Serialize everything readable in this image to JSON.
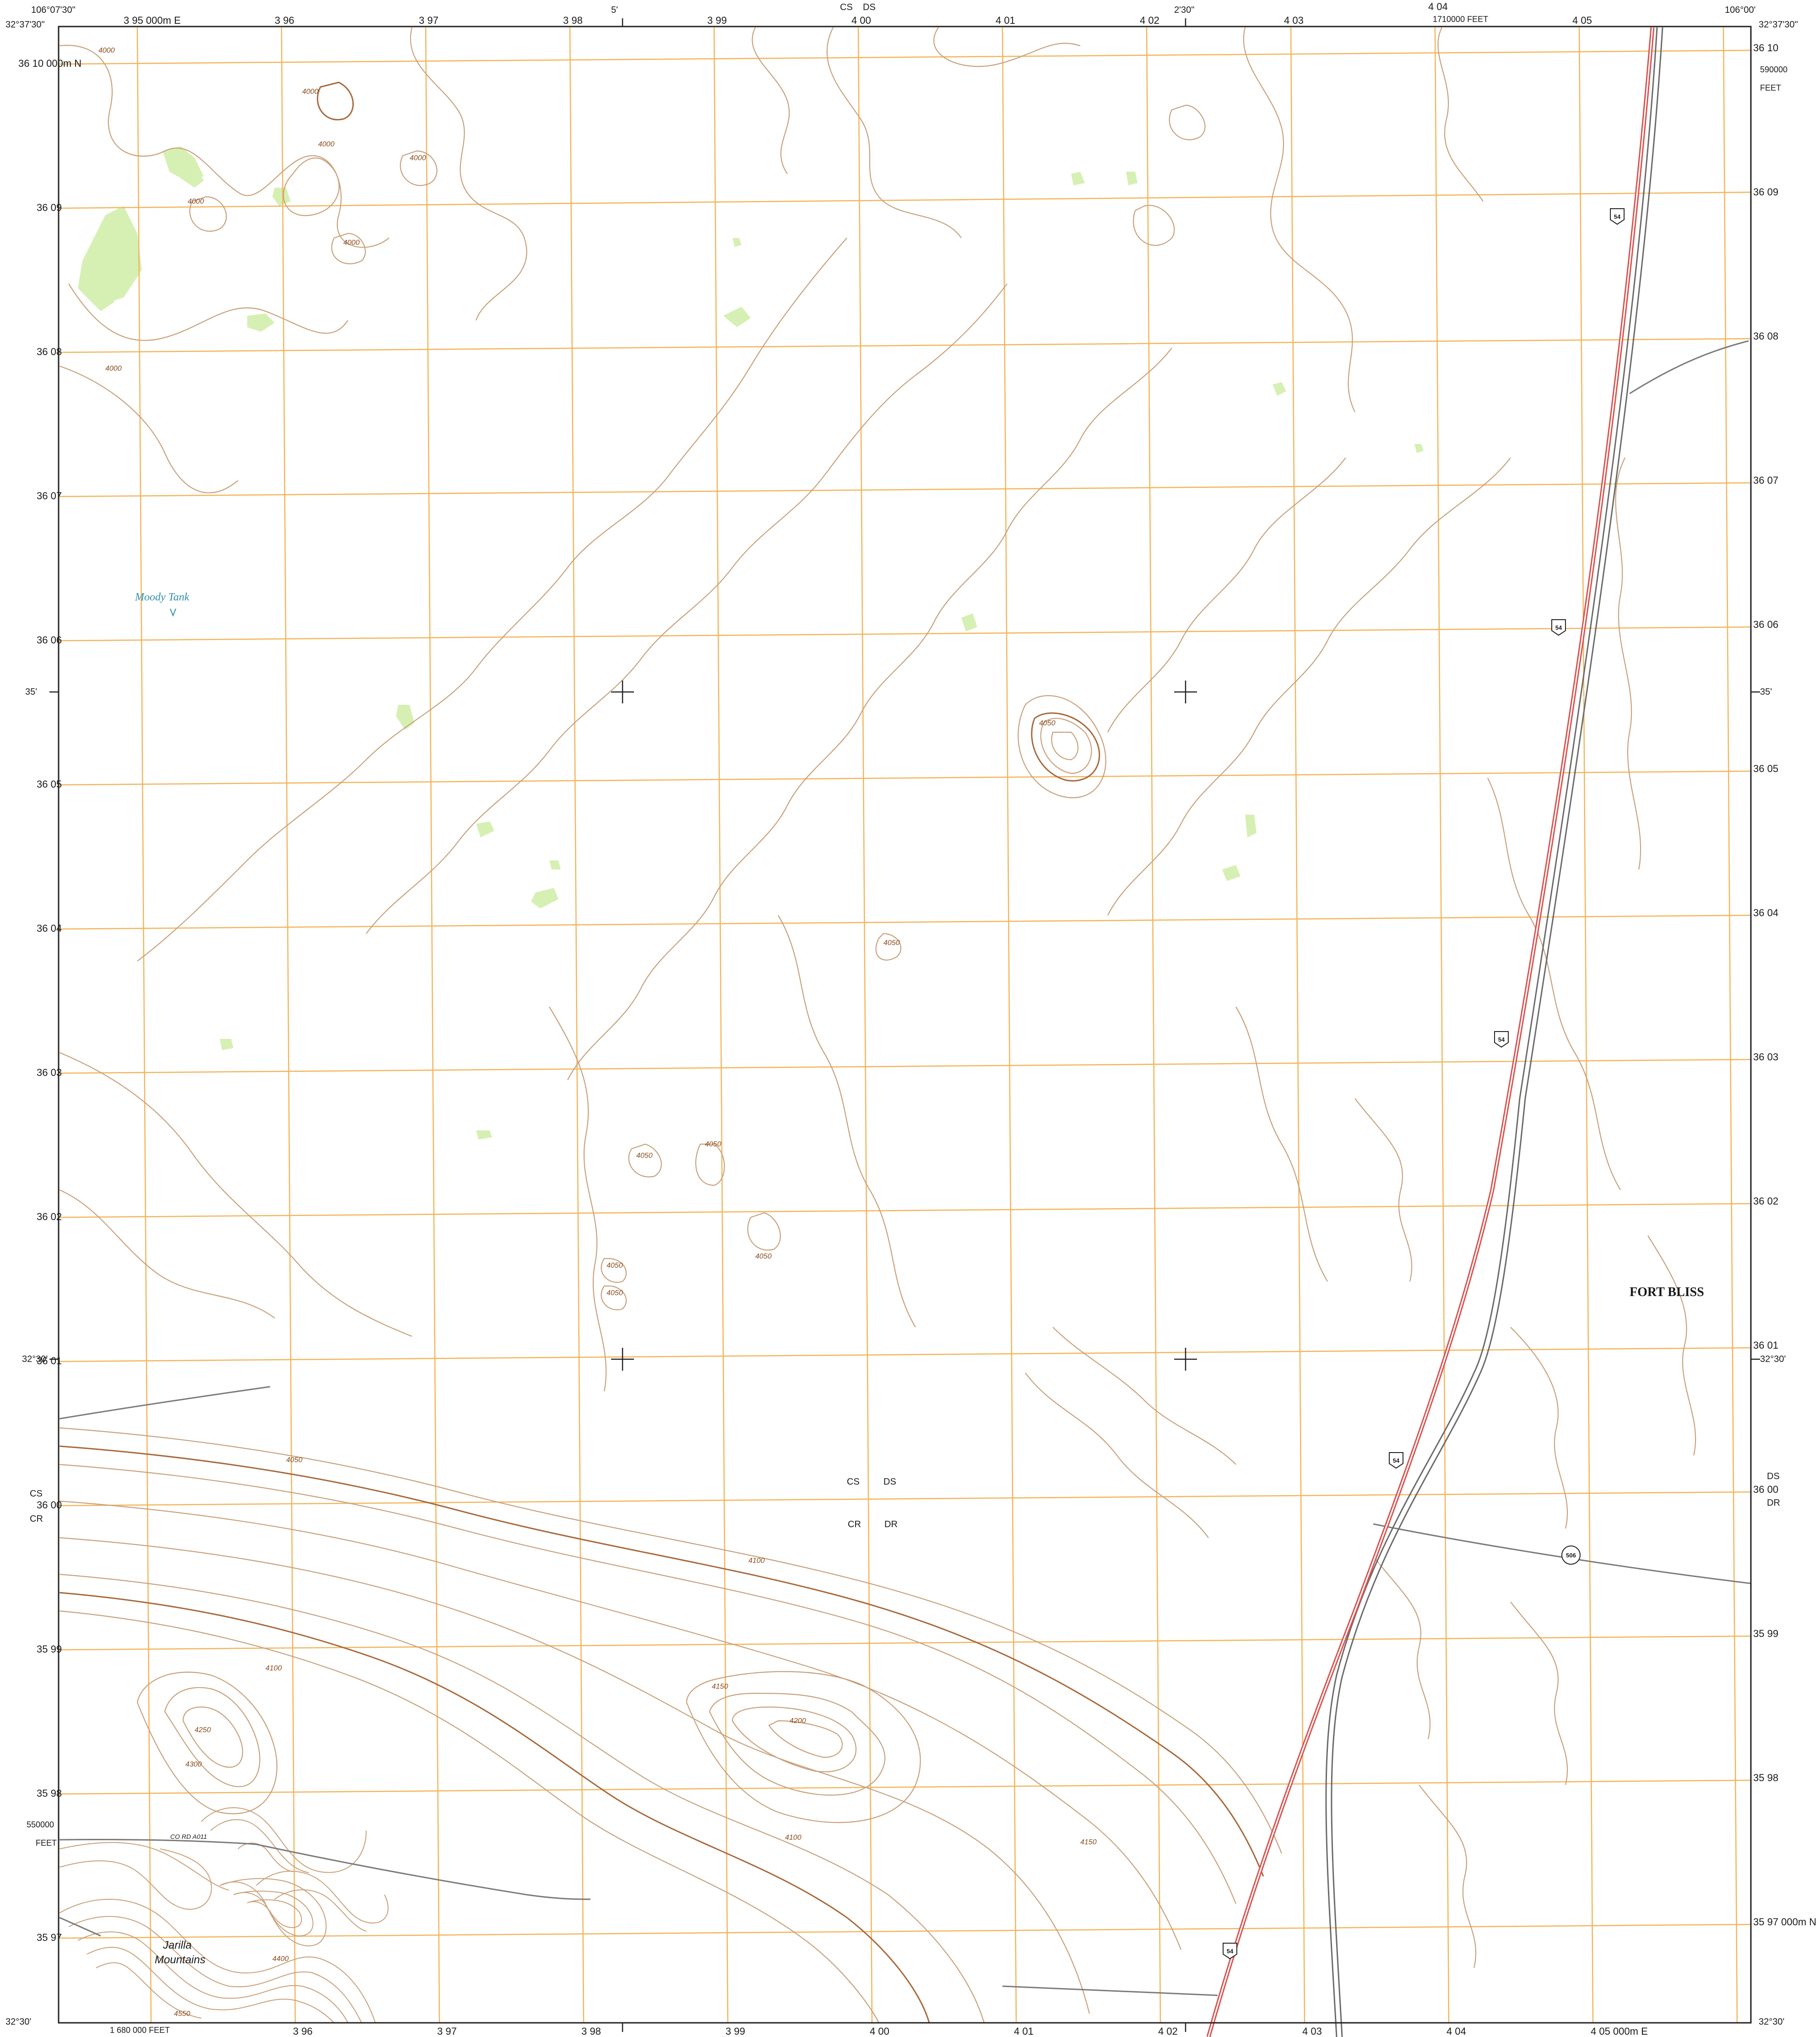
{
  "map": {
    "corners": {
      "top_left_lon": "106°07'30\"",
      "top_left_lat": "32°37'30\"",
      "top_right_lon": "106°00'",
      "top_right_lat": "32°37'30\"",
      "bottom_left_lat": "32°30'",
      "bottom_right_lat": "32°30'"
    },
    "top_labels": {
      "min5": "5'",
      "min2_30": "2'30\"",
      "cs": "CS",
      "ds": "DS",
      "feet_top": "1710000 FEET"
    },
    "right_labels": {
      "feet_590000": "590000",
      "feet_word": "FEET",
      "min35": "35'",
      "lat_32_30": "32°30'",
      "ds": "DS",
      "dr": "DR"
    },
    "left_labels": {
      "min35": "35'",
      "lat_32_30": "32°30'",
      "cs": "CS",
      "cr": "CR",
      "feet_550000": "550000",
      "feet_word": "FEET"
    },
    "bottom_labels": {
      "feet_bottom": "1 680 000 FEET"
    },
    "easting_top": [
      "3 95 000m E",
      "3 96",
      "3 97",
      "3 98",
      "3 99",
      "4 00",
      "4 01",
      "4 02",
      "4 03",
      "4 04",
      "4 05"
    ],
    "easting_bottom": [
      "3 96",
      "3 97",
      "3 98",
      "3 99",
      "4 00",
      "4 01",
      "4 02",
      "4 03",
      "4 04",
      "4 05 000m E"
    ],
    "northing_left": [
      "36 10 000m N",
      "36 09",
      "36 08",
      "36 07",
      "36 06",
      "36 05",
      "36 04",
      "36 03",
      "36 02",
      "36 01",
      "36 00",
      "35 99",
      "35 98",
      "35 97"
    ],
    "northing_right": [
      "36 10",
      "36 09",
      "36 08",
      "36 07",
      "36 06",
      "36 05",
      "36 04",
      "36 03",
      "36 02",
      "36 01",
      "36 00",
      "35 99",
      "35 98",
      "35 97 000m N"
    ],
    "features": {
      "water_body": "Moody Tank",
      "installation": "FORT BLISS",
      "mountain_line1": "Jarilla",
      "mountain_line2": "Mountains",
      "county_road": "CO RD A011",
      "zone_cs": "CS",
      "zone_ds": "DS",
      "zone_cr": "CR",
      "zone_dr": "DR"
    },
    "shields": {
      "us_route": "54",
      "state_route": "506"
    },
    "contour_labels": [
      "4000",
      "4000",
      "4000",
      "4000",
      "4000",
      "4000",
      "4000",
      "4050",
      "4050",
      "4050",
      "4050",
      "4050",
      "4050",
      "4050",
      "4050",
      "4100",
      "4100",
      "4150",
      "4200",
      "4250",
      "4300",
      "4400",
      "4550",
      "4100",
      "4150"
    ],
    "colors": {
      "contour": "#c9a07a",
      "index_contour": "#a8683a",
      "grid": "#f3b45a",
      "highway": "#d9534f",
      "railroad": "#6a6a6a",
      "vegetation": "#d6f0b4",
      "water": "#2f8fb0",
      "neatline": "#222222"
    }
  }
}
